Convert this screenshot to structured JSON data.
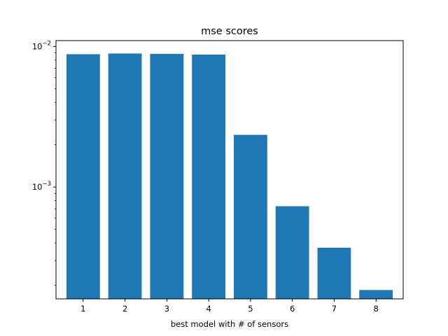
{
  "chart_data": {
    "type": "bar",
    "title": "mse scores",
    "xlabel": "best model with # of sensors",
    "ylabel": "",
    "yscale": "log",
    "ylim": [
      0.00016,
      0.011
    ],
    "categories": [
      "1",
      "2",
      "3",
      "4",
      "5",
      "6",
      "7",
      "8"
    ],
    "values": [
      0.0088,
      0.0089,
      0.00885,
      0.00875,
      0.00235,
      0.00073,
      0.00037,
      0.000185
    ],
    "y_major_ticks": [
      {
        "value": 0.01,
        "base": "10",
        "exp": "−2"
      },
      {
        "value": 0.001,
        "base": "10",
        "exp": "−3"
      }
    ],
    "bar_color": "#1f77b4",
    "grid": false,
    "legend": "none"
  }
}
